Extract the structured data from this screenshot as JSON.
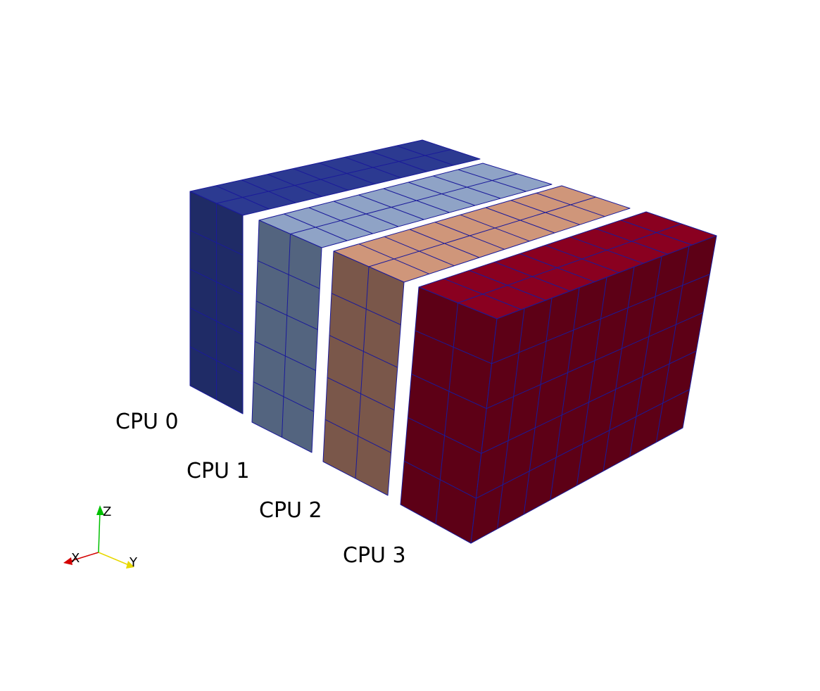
{
  "scene": {
    "background": "#ffffff",
    "grid_line_color": "#1a1a9a",
    "blocks": [
      {
        "label": "CPU 0",
        "front_color": "#1f2b66",
        "top_color": "#2c3a91"
      },
      {
        "label": "CPU 1",
        "front_color": "#53647f",
        "top_color": "#8fa3c6"
      },
      {
        "label": "CPU 2",
        "front_color": "#7a574a",
        "top_color": "#cf967a"
      },
      {
        "label": "CPU 3",
        "front_color": "#5d0016",
        "top_color": "#8a0020",
        "side_color": "#5d0016"
      }
    ],
    "axes": {
      "x_label": "X",
      "y_label": "Y",
      "z_label": "Z",
      "x_color": "#d40000",
      "y_color": "#e8d800",
      "z_color": "#00c000"
    }
  }
}
